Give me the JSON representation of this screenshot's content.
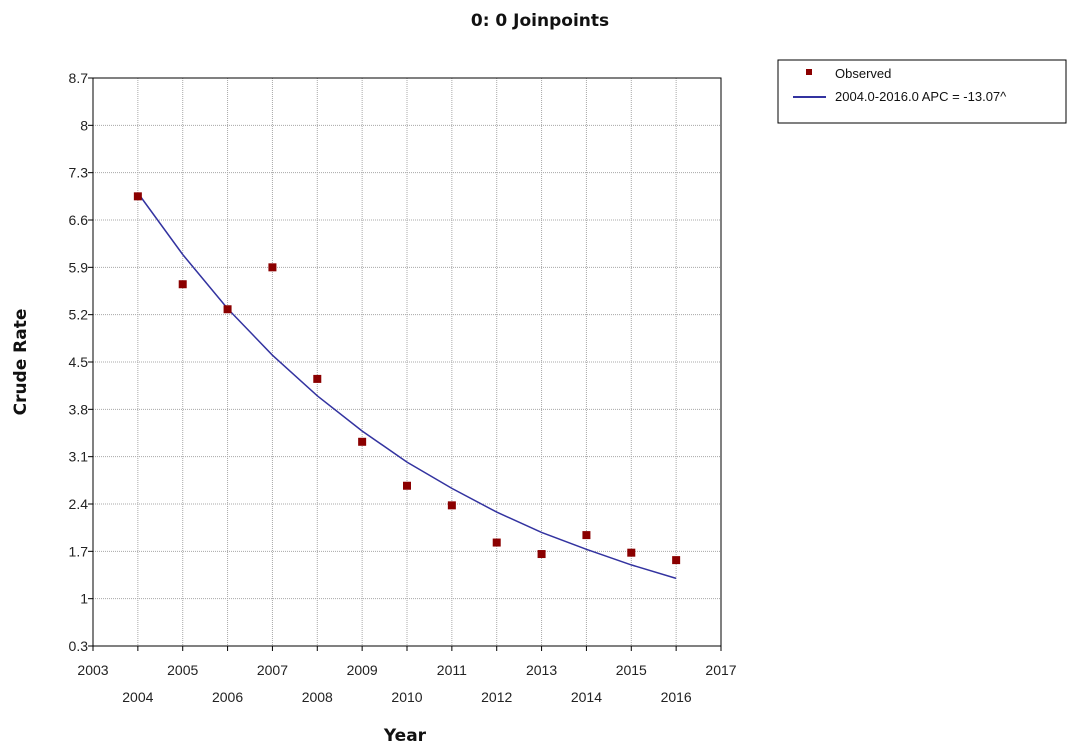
{
  "chart_data": {
    "type": "scatter",
    "title": "0: 0 Joinpoints",
    "xlabel": "Year",
    "ylabel": "Crude Rate",
    "xlim": [
      2003,
      2017
    ],
    "ylim": [
      0.3,
      8.7
    ],
    "x_ticks": [
      2003,
      2004,
      2005,
      2006,
      2007,
      2008,
      2009,
      2010,
      2011,
      2012,
      2013,
      2014,
      2015,
      2016,
      2017
    ],
    "y_ticks": [
      "0.3",
      "1",
      "1.7",
      "2.4",
      "3.1",
      "3.8",
      "4.5",
      "5.2",
      "5.9",
      "6.6",
      "7.3",
      "8",
      "8.7"
    ],
    "grid": true,
    "legend_position": "top-right, outside plot",
    "series": [
      {
        "name": "Observed",
        "kind": "points",
        "color": "#8b0000",
        "x": [
          2004,
          2005,
          2006,
          2007,
          2008,
          2009,
          2010,
          2011,
          2012,
          2013,
          2014,
          2015,
          2016
        ],
        "y": [
          6.95,
          5.65,
          5.28,
          5.9,
          4.25,
          3.32,
          2.67,
          2.38,
          1.83,
          1.66,
          1.94,
          1.68,
          1.57
        ]
      },
      {
        "name": "2004.0-2016.0 APC  = -13.07^",
        "kind": "line",
        "color": "#3333a0",
        "x": [
          2004,
          2005,
          2006,
          2007,
          2008,
          2009,
          2010,
          2011,
          2012,
          2013,
          2014,
          2015,
          2016
        ],
        "y": [
          7.0,
          6.09,
          5.29,
          4.6,
          4.0,
          3.48,
          3.02,
          2.63,
          2.28,
          1.98,
          1.73,
          1.5,
          1.3
        ]
      }
    ]
  }
}
